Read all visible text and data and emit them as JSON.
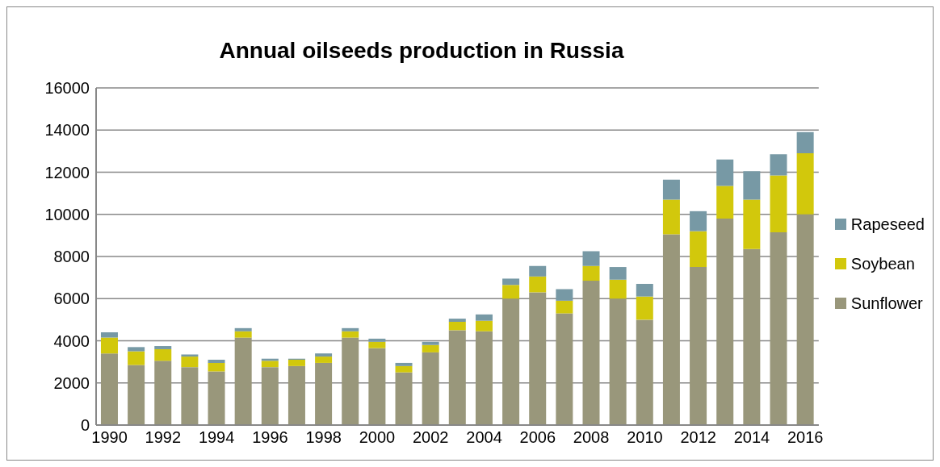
{
  "chart_data": {
    "type": "bar",
    "title": "Annual oilseeds production in Russia",
    "stacked": true,
    "categories": [
      "1990",
      null,
      "1992",
      null,
      "1994",
      null,
      "1996",
      null,
      "1998",
      null,
      "2000",
      null,
      "2002",
      null,
      "2004",
      null,
      "2006",
      null,
      "2008",
      null,
      "2010",
      null,
      "2012",
      null,
      "2014",
      null,
      "2016"
    ],
    "series": [
      {
        "name": "Sunflower",
        "color": "#99977b",
        "values": [
          3400,
          2850,
          3050,
          2750,
          2550,
          4150,
          2750,
          2800,
          2950,
          4150,
          3650,
          2500,
          3450,
          4500,
          4450,
          6000,
          6300,
          5300,
          6850,
          6000,
          5000,
          9050,
          7500,
          9800,
          8350,
          9150,
          10000
        ]
      },
      {
        "name": "Soybean",
        "color": "#d2c80c",
        "values": [
          750,
          650,
          550,
          500,
          400,
          300,
          300,
          300,
          300,
          300,
          300,
          300,
          350,
          400,
          500,
          650,
          750,
          600,
          700,
          900,
          1100,
          1650,
          1700,
          1550,
          2350,
          2700,
          2900
        ]
      },
      {
        "name": "Rapeseed",
        "color": "#7799a5",
        "values": [
          250,
          200,
          150,
          100,
          150,
          150,
          100,
          50,
          150,
          150,
          150,
          150,
          150,
          150,
          300,
          300,
          500,
          550,
          700,
          600,
          600,
          950,
          950,
          1250,
          1350,
          1000,
          1000
        ]
      }
    ],
    "ylim": [
      0,
      16000
    ],
    "yticks": [
      0,
      2000,
      4000,
      6000,
      8000,
      10000,
      12000,
      14000,
      16000
    ],
    "grid": "y",
    "legend": "right"
  }
}
